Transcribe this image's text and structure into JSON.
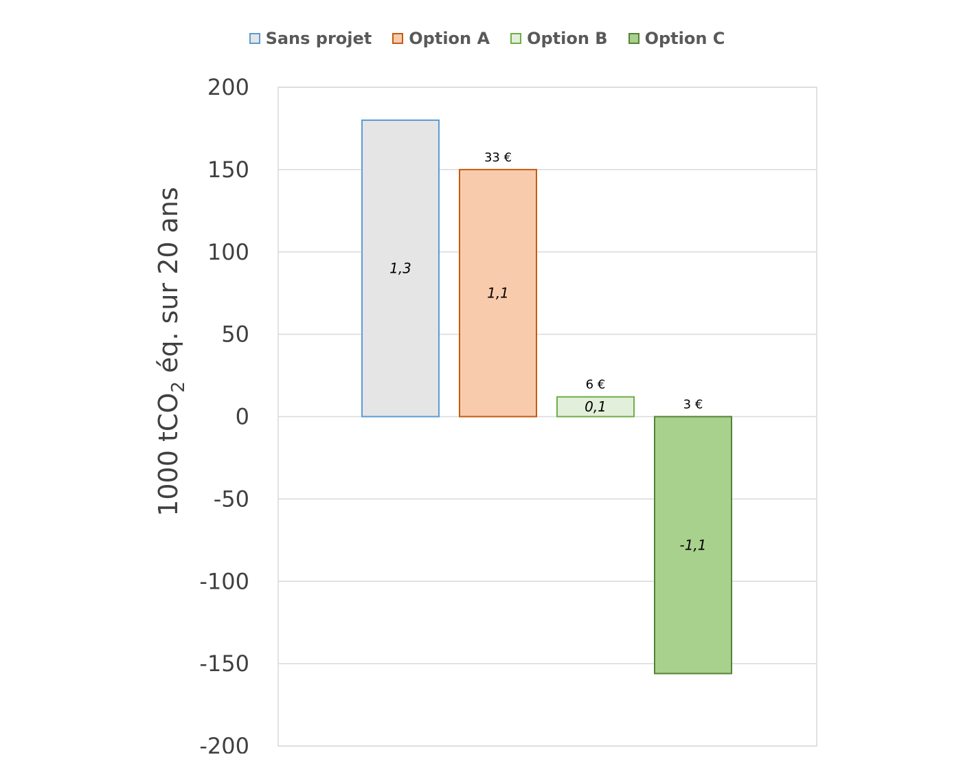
{
  "chart_data": {
    "type": "bar",
    "categories": [
      "Sans projet",
      "Option A",
      "Option B",
      "Option C"
    ],
    "values": [
      180,
      150,
      12,
      -156
    ],
    "inside_labels": [
      "1,3",
      "1,1",
      "0,1",
      "-1,1"
    ],
    "above_labels": [
      "",
      "33 €",
      "6 €",
      "3 €"
    ],
    "ylabel_main": "1000 tCO",
    "ylabel_sub": "2",
    "ylabel_rest": " éq. sur 20 ans",
    "ylim": [
      -200,
      200
    ],
    "yticks": [
      200,
      150,
      100,
      50,
      0,
      -50,
      -100,
      -150,
      -200
    ],
    "grid": true,
    "legend_position": "top",
    "colors": {
      "fills": [
        "#e5e5e5",
        "#f8cbad",
        "#e2efda",
        "#a9d18e"
      ],
      "strokes": [
        "#5b9bd5",
        "#c55a11",
        "#70ad47",
        "#548235"
      ],
      "grid": "#d9d9d9"
    }
  }
}
